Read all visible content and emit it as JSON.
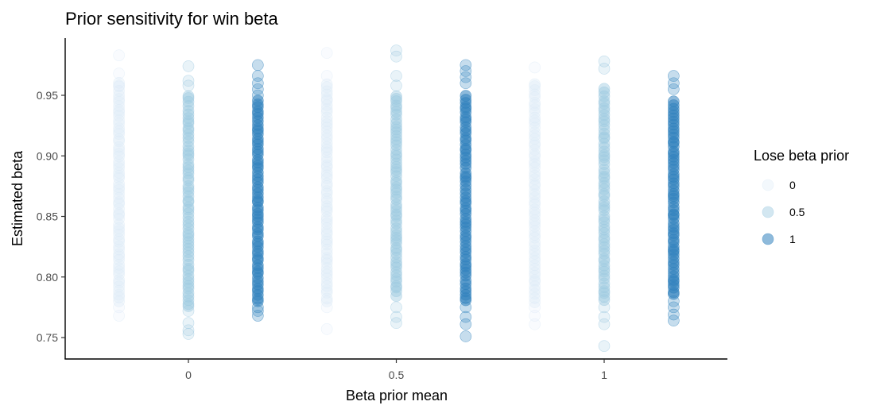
{
  "chart_data": {
    "type": "scatter",
    "title": "Prior sensitivity for win beta",
    "xlabel": "Beta prior mean",
    "ylabel": "Estimated beta",
    "x_ticks": [
      "0",
      "0.5",
      "1"
    ],
    "x_tick_values": [
      0,
      0.5,
      1
    ],
    "y_ticks": [
      "0.75",
      "0.80",
      "0.85",
      "0.90",
      "0.95"
    ],
    "y_tick_values": [
      0.75,
      0.8,
      0.85,
      0.9,
      0.95
    ],
    "xlim": [
      -0.3,
      1.3
    ],
    "ylim": [
      0.73,
      0.99
    ],
    "grid": false,
    "legend": {
      "title": "Lose beta prior",
      "position": "right",
      "entries": [
        "0",
        "0.5",
        "1"
      ]
    },
    "colors": {
      "0": "#deebf7",
      "0.5": "#9ecae1",
      "1": "#3182bd"
    },
    "dodge_offsets": {
      "0": -0.167,
      "0.5": 0,
      "1": 0.167
    },
    "groups": [
      {
        "win_prior": 0,
        "lose_prior": "0",
        "dense_range": [
          0.78,
          0.96
        ],
        "outliers": [
          0.983,
          0.968,
          0.958,
          0.775,
          0.768
        ]
      },
      {
        "win_prior": 0,
        "lose_prior": "0.5",
        "dense_range": [
          0.775,
          0.95
        ],
        "outliers": [
          0.974,
          0.962,
          0.958,
          0.772,
          0.762,
          0.756,
          0.753
        ]
      },
      {
        "win_prior": 0,
        "lose_prior": "1",
        "dense_range": [
          0.78,
          0.945
        ],
        "outliers": [
          0.975,
          0.966,
          0.96,
          0.955,
          0.95,
          0.775,
          0.772,
          0.768
        ]
      },
      {
        "win_prior": 0.5,
        "lose_prior": "0",
        "dense_range": [
          0.78,
          0.96
        ],
        "outliers": [
          0.985,
          0.966,
          0.775,
          0.757
        ]
      },
      {
        "win_prior": 0.5,
        "lose_prior": "0.5",
        "dense_range": [
          0.785,
          0.95
        ],
        "outliers": [
          0.987,
          0.982,
          0.966,
          0.958,
          0.775,
          0.767,
          0.762
        ]
      },
      {
        "win_prior": 0.5,
        "lose_prior": "1",
        "dense_range": [
          0.78,
          0.95
        ],
        "outliers": [
          0.975,
          0.97,
          0.965,
          0.96,
          0.775,
          0.767,
          0.761,
          0.751
        ]
      },
      {
        "win_prior": 1,
        "lose_prior": "0",
        "dense_range": [
          0.78,
          0.96
        ],
        "outliers": [
          0.973,
          0.775,
          0.768,
          0.761
        ]
      },
      {
        "win_prior": 1,
        "lose_prior": "0.5",
        "dense_range": [
          0.78,
          0.955
        ],
        "outliers": [
          0.978,
          0.972,
          0.775,
          0.767,
          0.761,
          0.743
        ]
      },
      {
        "win_prior": 1,
        "lose_prior": "1",
        "dense_range": [
          0.785,
          0.945
        ],
        "outliers": [
          0.966,
          0.96,
          0.955,
          0.78,
          0.775,
          0.769,
          0.764
        ]
      }
    ]
  }
}
